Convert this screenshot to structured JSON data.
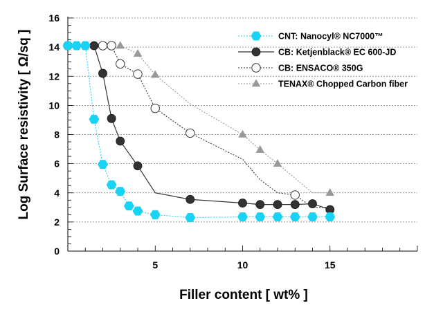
{
  "chart_data": {
    "type": "line",
    "title": "",
    "xlabel": "Filler content [ wt% ]",
    "ylabel": "Log Surface resistivity [ Ω/sq ]",
    "xlim": [
      0,
      20
    ],
    "ylim": [
      0,
      16
    ],
    "x_ticks": [
      5,
      10,
      15
    ],
    "y_ticks": [
      0,
      2,
      4,
      6,
      8,
      10,
      12,
      14,
      16
    ],
    "grid": "horizontal dotted",
    "legend_position": "top-right",
    "series": [
      {
        "name": "CNT: Nanocyl® NC7000™",
        "color": "#19d3f5",
        "line_style": "dotted",
        "marker": "hexagon",
        "x": [
          0,
          0.5,
          1.0,
          1.5,
          2.0,
          2.5,
          3.0,
          3.5,
          4.0,
          5.0,
          7.0,
          10.0,
          11.0,
          12.0,
          13.0,
          14.0,
          15.0
        ],
        "y": [
          14.1,
          14.1,
          14.1,
          9.05,
          5.95,
          4.55,
          4.1,
          3.1,
          2.75,
          2.5,
          2.3,
          2.35,
          2.35,
          2.35,
          2.35,
          2.35,
          2.35
        ]
      },
      {
        "name": "CB: Ketjenblack® EC 600-JD",
        "color": "#333333",
        "line_style": "solid",
        "marker": "filled-circle",
        "x": [
          0,
          0.5,
          1.0,
          1.5,
          2.0,
          2.5,
          3.0,
          4.0,
          5.0,
          7.0,
          10.0,
          11.0,
          12.0,
          13.0,
          14.0,
          15.0
        ],
        "y": [
          14.1,
          14.1,
          14.1,
          14.1,
          12.2,
          9.1,
          7.55,
          5.85,
          4.0,
          3.55,
          3.3,
          3.2,
          3.2,
          3.2,
          3.25,
          2.85
        ],
        "markers_at": [
          0,
          1,
          2,
          3,
          4,
          5,
          6,
          7,
          9,
          10,
          11,
          12,
          13,
          14,
          15
        ]
      },
      {
        "name": "CB: ENSACO® 350G",
        "color": "#333333",
        "line_style": "dotted",
        "marker": "open-circle",
        "x": [
          0,
          0.5,
          1.0,
          1.5,
          2.0,
          2.5,
          3.0,
          4.0,
          5.0,
          7.0,
          10.0,
          11.0,
          12.0,
          13.0,
          14.0,
          15.0
        ],
        "y": [
          14.1,
          14.1,
          14.1,
          14.1,
          14.1,
          14.1,
          12.85,
          12.15,
          9.8,
          8.1,
          6.3,
          4.9,
          4.0,
          3.85,
          3.0,
          3.0
        ],
        "markers_at": [
          0,
          4,
          5,
          6,
          7,
          8,
          9,
          13
        ]
      },
      {
        "name": "TENAX® Chopped Carbon fiber",
        "color": "#999999",
        "line_style": "dotted",
        "marker": "triangle",
        "x": [
          0,
          1.0,
          2.0,
          2.5,
          3.0,
          4.0,
          5.0,
          7.0,
          10.0,
          11.0,
          12.0,
          14.0,
          15.0
        ],
        "y": [
          14.1,
          14.1,
          14.1,
          14.1,
          14.1,
          13.55,
          12.1,
          10.1,
          8.0,
          6.95,
          6.0,
          4.0,
          4.0
        ],
        "markers_at": [
          4,
          5,
          6,
          8,
          9,
          10,
          12
        ]
      }
    ]
  }
}
